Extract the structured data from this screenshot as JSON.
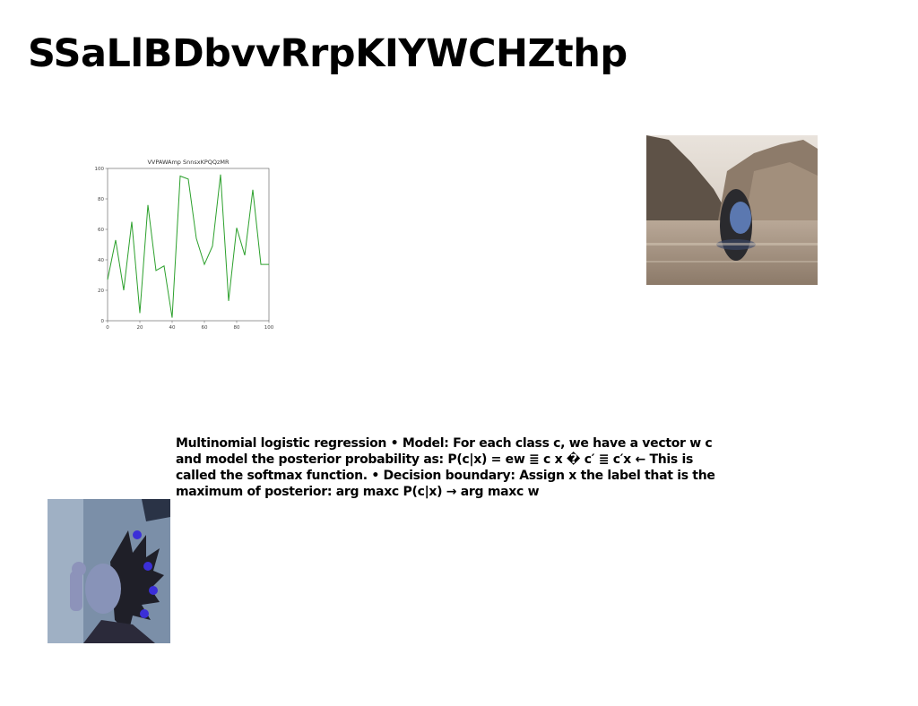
{
  "page": {
    "title": "SSaLlBDbvvRrpKIYWCHZthp"
  },
  "body_text": "Multinomial logistic regression • Model: For each class c, we have a vector w c and model the posterior probability as: P(c|x) = ew ≣ c x � c′ ≣ c′x ← This is called the softmax function. • Decision boundary: Assign x the label that is the maximum of posterior: arg maxc P(c|x) → arg maxc w",
  "images": {
    "lake": "woman submerged in lake with mountains",
    "girl": "girl with spiky decorated hair, blue tint"
  },
  "chart_data": {
    "type": "line",
    "title": "VVPAWAmp SnnsxKPQQzMR",
    "xlabel": "",
    "ylabel": "",
    "xlim": [
      0,
      100
    ],
    "ylim": [
      0,
      100
    ],
    "xticks": [
      0,
      20,
      40,
      60,
      80,
      100
    ],
    "yticks": [
      0,
      20,
      40,
      60,
      80,
      100
    ],
    "grid": false,
    "x": [
      0,
      5,
      10,
      15,
      20,
      25,
      30,
      35,
      40,
      45,
      50,
      55,
      60,
      65,
      70,
      75,
      80,
      85,
      90,
      95,
      100
    ],
    "series": [
      {
        "color": "#2ca02c",
        "values": [
          27,
          53,
          20,
          65,
          5,
          76,
          33,
          36,
          2,
          95,
          93,
          54,
          37,
          49,
          96,
          13,
          61,
          43,
          86,
          37,
          37
        ]
      }
    ]
  }
}
